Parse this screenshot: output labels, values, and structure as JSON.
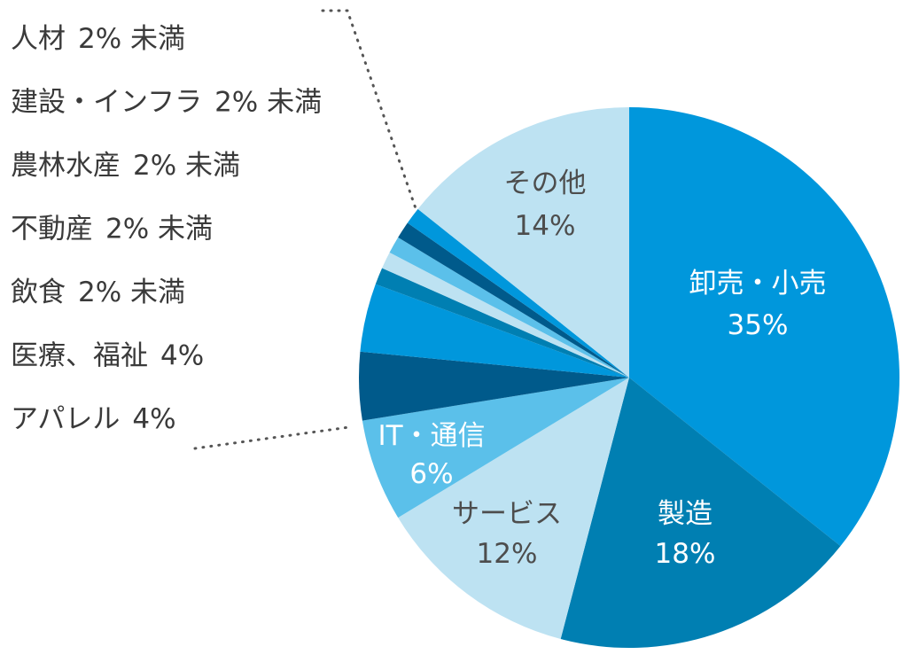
{
  "chart_data": {
    "type": "pie",
    "title": "",
    "start_angle_deg": 0,
    "direction": "clockwise",
    "slices": [
      {
        "name": "卸売・小売",
        "label": "35%",
        "value": 35,
        "color": "#0097dc",
        "text_color": "#ffffff"
      },
      {
        "name": "製造",
        "label": "18%",
        "value": 18,
        "color": "#007fb2",
        "text_color": "#ffffff"
      },
      {
        "name": "サービス",
        "label": "12%",
        "value": 12,
        "color": "#bde2f2",
        "text_color": "#4d4d4d"
      },
      {
        "name": "IT・通信",
        "label": "6%",
        "value": 6,
        "color": "#5bc0ea",
        "text_color": "#ffffff"
      },
      {
        "name": "アパレル",
        "label": "4%",
        "value": 4,
        "color": "#005a8b",
        "text_color": "#ffffff"
      },
      {
        "name": "医療、福祉",
        "label": "4%",
        "value": 4,
        "color": "#0097dc",
        "text_color": "#ffffff"
      },
      {
        "name": "飲食",
        "label": "2% 未満",
        "value": 1,
        "color": "#007fb2",
        "text_color": "#ffffff"
      },
      {
        "name": "不動産",
        "label": "2% 未満",
        "value": 1,
        "color": "#bde2f2",
        "text_color": "#4d4d4d"
      },
      {
        "name": "農林水産",
        "label": "2% 未満",
        "value": 1,
        "color": "#5bc0ea",
        "text_color": "#ffffff"
      },
      {
        "name": "建設・インフラ",
        "label": "2% 未満",
        "value": 1,
        "color": "#005a8b",
        "text_color": "#ffffff"
      },
      {
        "name": "人材",
        "label": "2% 未満",
        "value": 1,
        "color": "#0097dc",
        "text_color": "#ffffff"
      },
      {
        "name": "その他",
        "label": "14%",
        "value": 14,
        "color": "#bde2f2",
        "text_color": "#4d4d4d"
      }
    ],
    "side_legend": [
      {
        "name": "人材",
        "label": "2% 未満"
      },
      {
        "name": "建設・インフラ",
        "label": "2% 未満"
      },
      {
        "name": "農林水産",
        "label": "2% 未満"
      },
      {
        "name": "不動産",
        "label": "2% 未満"
      },
      {
        "name": "飲食",
        "label": "2% 未満"
      },
      {
        "name": "医療、福祉",
        "label": "4%"
      },
      {
        "name": "アパレル",
        "label": "4%"
      }
    ],
    "inside_labels": [
      "卸売・小売",
      "製造",
      "サービス",
      "IT・通信",
      "その他"
    ]
  }
}
